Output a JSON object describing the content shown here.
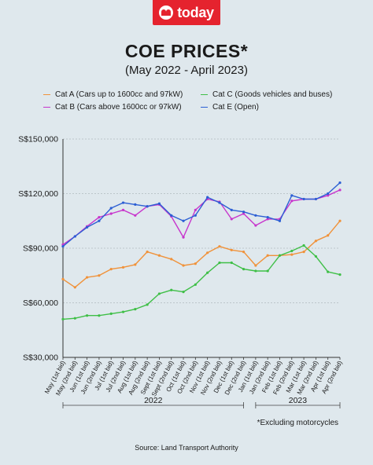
{
  "brand": {
    "logo_text": "today"
  },
  "header": {
    "title": "COE PRICES*",
    "subtitle": "(May 2022 - April 2023)"
  },
  "footer": {
    "note": "*Excluding motorcycles",
    "source": "Source: Land Transport Authority"
  },
  "chart_data": {
    "type": "line",
    "title": "COE PRICES*",
    "subtitle": "(May 2022 - April 2023)",
    "categories": [
      "May (1st bid)",
      "May (2nd bid)",
      "Jun (1st bid)",
      "Jun (2nd bid)",
      "Jul (1st bid)",
      "Jul (2nd bid)",
      "Aug (1st bid)",
      "Aug (2nd bid)",
      "Sept (1st bid)",
      "Sept (2nd bid)",
      "Oct (1st bid)",
      "Oct (2nd bid)",
      "Nov (1st bid)",
      "Nov (2nd bid)",
      "Dec (1st bid)",
      "Dec (2nd bid)",
      "Jan (1st bid)",
      "Jan (2nd bid)",
      "Feb (1st bid)",
      "Feb (2nd bid)",
      "Mar (1st bid)",
      "Mar (2nd bid)",
      "Apr (1st bid)",
      "Apr (2nd bid)"
    ],
    "years": [
      {
        "label": "2022",
        "from": 0,
        "to": 15
      },
      {
        "label": "2023",
        "from": 16,
        "to": 23
      }
    ],
    "ylim": [
      30000,
      150000
    ],
    "yticks": [
      30000,
      60000,
      90000,
      120000,
      150000
    ],
    "ytick_labels": [
      "S$30,000",
      "S$60,000",
      "S$90,000",
      "S$120,000",
      "S$150,000"
    ],
    "grid": "horizontal",
    "legend": "top",
    "series": [
      {
        "name": "Cat A (Cars up to 1600cc and 97kW)",
        "color": "#f0923a",
        "values": [
          73000,
          68500,
          74000,
          75000,
          78500,
          79500,
          81000,
          88000,
          86000,
          84000,
          80500,
          81500,
          87500,
          91000,
          89000,
          88000,
          80500,
          86000,
          86000,
          86500,
          88000,
          94000,
          97000,
          105000
        ]
      },
      {
        "name": "Cat B (Cars above 1600cc or 97kW)",
        "color": "#c735cc",
        "values": [
          92000,
          96500,
          102000,
          107000,
          109000,
          111000,
          108000,
          113000,
          114000,
          107500,
          96000,
          111000,
          117000,
          115500,
          106000,
          109000,
          102500,
          106000,
          106000,
          116000,
          117000,
          117000,
          119000,
          122000
        ]
      },
      {
        "name": "Cat C (Goods vehicles and buses)",
        "color": "#3fbf47",
        "values": [
          51000,
          51500,
          53000,
          53000,
          54000,
          55000,
          56500,
          59000,
          65000,
          67000,
          66000,
          70000,
          76500,
          82000,
          82000,
          78500,
          77500,
          77500,
          86000,
          88500,
          91500,
          85500,
          77000,
          75500
        ]
      },
      {
        "name": "Cat E (Open)",
        "color": "#2c5fd4",
        "values": [
          91000,
          96500,
          101500,
          105000,
          112000,
          115000,
          114000,
          113000,
          114500,
          108000,
          105000,
          108000,
          118000,
          115000,
          111000,
          110000,
          108000,
          107000,
          105000,
          119000,
          117000,
          117000,
          120000,
          126000
        ]
      }
    ]
  }
}
